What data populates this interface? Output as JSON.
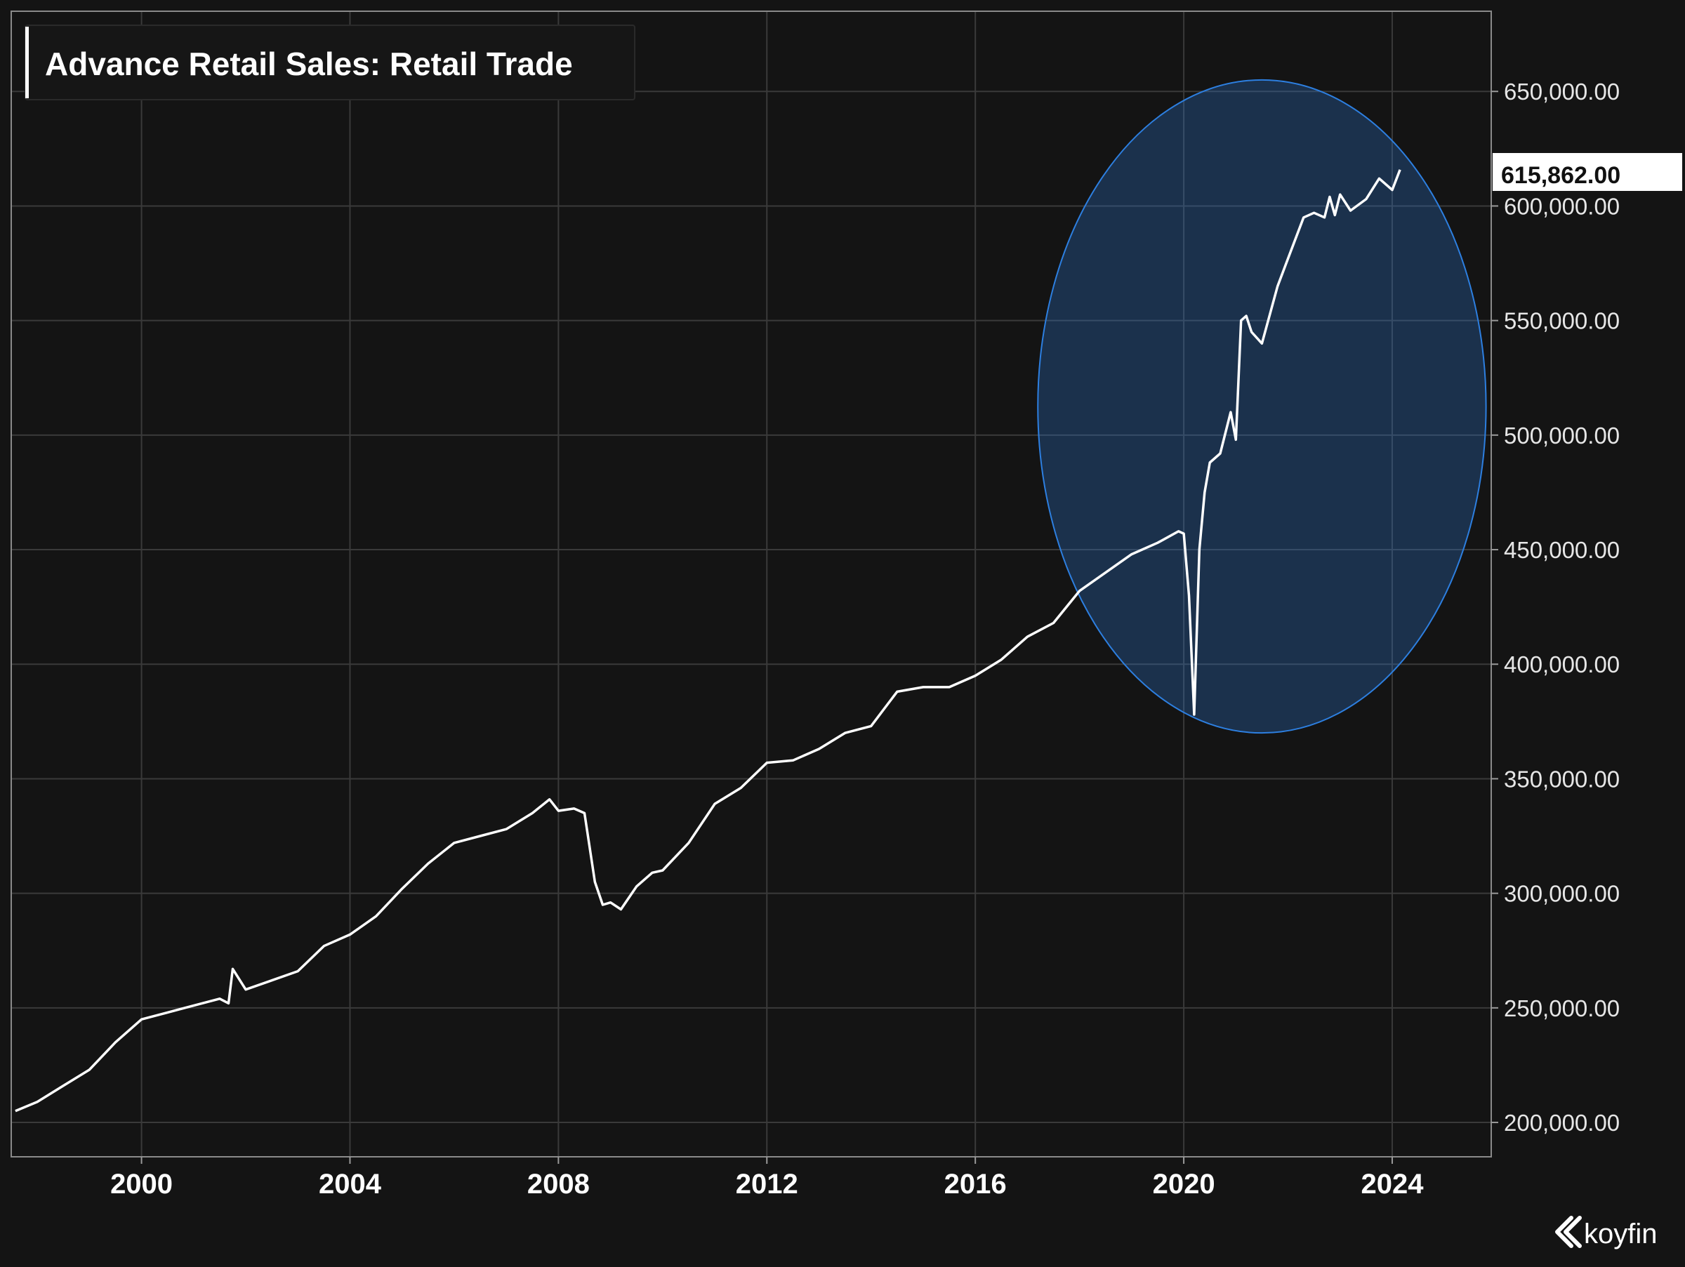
{
  "chart_data": {
    "type": "line",
    "title": "Advance Retail Sales: Retail Trade",
    "xlabel": "",
    "ylabel": "",
    "xlim": [
      1997.5,
      2025.9
    ],
    "ylim": [
      185000,
      685000
    ],
    "x_ticks": [
      2000,
      2004,
      2008,
      2012,
      2016,
      2020,
      2024
    ],
    "x_tick_labels": [
      "2000",
      "2004",
      "2008",
      "2012",
      "2016",
      "2020",
      "2024"
    ],
    "y_ticks": [
      200000,
      250000,
      300000,
      350000,
      400000,
      450000,
      500000,
      550000,
      600000,
      650000
    ],
    "y_tick_labels": [
      "200,000.00",
      "250,000.00",
      "300,000.00",
      "350,000.00",
      "400,000.00",
      "450,000.00",
      "500,000.00",
      "550,000.00",
      "600,000.00",
      "650,000.00"
    ],
    "grid": true,
    "y_axis_position": "right",
    "last_value_label": "615,862.00",
    "line_color": "#ffffff",
    "highlight_color": "#2d7fe0",
    "highlight": {
      "x_range": [
        2017.2,
        2025.8
      ],
      "y_range": [
        370000,
        655000
      ]
    },
    "series": [
      {
        "x": [
          1997.58,
          1998.0,
          1998.5,
          1999.0,
          1999.5,
          2000.0,
          2000.5,
          2001.0,
          2001.5,
          2001.67,
          2001.75,
          2002.0,
          2002.5,
          2003.0,
          2003.5,
          2004.0,
          2004.5,
          2005.0,
          2005.5,
          2006.0,
          2006.5,
          2007.0,
          2007.5,
          2007.83,
          2008.0,
          2008.3,
          2008.5,
          2008.7,
          2008.85,
          2009.0,
          2009.2,
          2009.5,
          2009.8,
          2010.0,
          2010.5,
          2011.0,
          2011.5,
          2012.0,
          2012.5,
          2013.0,
          2013.5,
          2014.0,
          2014.5,
          2015.0,
          2015.5,
          2016.0,
          2016.5,
          2017.0,
          2017.5,
          2018.0,
          2018.5,
          2019.0,
          2019.5,
          2019.9,
          2020.0,
          2020.1,
          2020.2,
          2020.3,
          2020.4,
          2020.5,
          2020.7,
          2020.9,
          2021.0,
          2021.1,
          2021.2,
          2021.3,
          2021.5,
          2021.8,
          2022.0,
          2022.3,
          2022.5,
          2022.7,
          2022.8,
          2022.9,
          2023.0,
          2023.2,
          2023.5,
          2023.75,
          2024.0,
          2024.15
        ],
        "values": [
          205000,
          209000,
          216000,
          223000,
          235000,
          245000,
          248000,
          251000,
          254000,
          252000,
          267000,
          258000,
          262000,
          266000,
          277000,
          282000,
          290000,
          302000,
          313000,
          322000,
          325000,
          328000,
          335000,
          341000,
          336000,
          337000,
          335000,
          305000,
          295000,
          296000,
          293000,
          303000,
          309000,
          310000,
          322000,
          339000,
          346000,
          357000,
          358000,
          363000,
          370000,
          373000,
          388000,
          390000,
          390000,
          395000,
          402000,
          412000,
          418000,
          432000,
          440000,
          448000,
          453000,
          458000,
          457000,
          430000,
          378000,
          450000,
          475000,
          488000,
          492000,
          510000,
          498000,
          550000,
          552000,
          545000,
          540000,
          565000,
          577000,
          595000,
          597000,
          595000,
          604000,
          596000,
          605000,
          598000,
          603000,
          612000,
          607000,
          615862
        ]
      }
    ]
  },
  "watermark": {
    "text": "koyfin"
  }
}
